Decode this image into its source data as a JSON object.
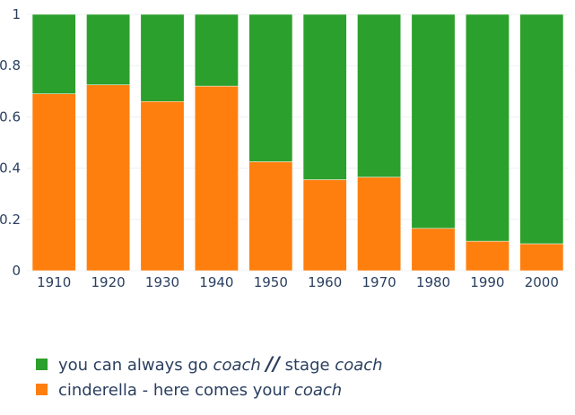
{
  "chart_data": {
    "type": "bar",
    "stacked": true,
    "categories": [
      "1910",
      "1920",
      "1930",
      "1940",
      "1950",
      "1960",
      "1970",
      "1980",
      "1990",
      "2000"
    ],
    "series": [
      {
        "name": "cinderella - here comes your coach",
        "name_parts": [
          {
            "text": "cinderella - here comes your ",
            "italic": false
          },
          {
            "text": "coach",
            "italic": true
          }
        ],
        "color": "#ff7f0e",
        "values": [
          0.69,
          0.725,
          0.66,
          0.72,
          0.425,
          0.355,
          0.365,
          0.165,
          0.115,
          0.105
        ]
      },
      {
        "name": "you can always go coach // stage coach",
        "name_parts": [
          {
            "text": "you can always go ",
            "italic": false
          },
          {
            "text": "coach",
            "italic": true
          },
          {
            "text": " ",
            "italic": false
          },
          {
            "text": "//",
            "italic": true,
            "bold": true
          },
          {
            "text": " stage ",
            "italic": false
          },
          {
            "text": "coach",
            "italic": true
          }
        ],
        "color": "#2ca02c",
        "values": [
          0.31,
          0.275,
          0.34,
          0.28,
          0.575,
          0.645,
          0.635,
          0.835,
          0.885,
          0.895
        ]
      }
    ],
    "y_ticks": [
      "0",
      "0.2",
      "0.4",
      "0.6",
      "0.8",
      "1"
    ],
    "ylim": [
      0,
      1
    ],
    "grid": true,
    "legend_position": "bottom-left",
    "legend_order": [
      1,
      0
    ]
  }
}
